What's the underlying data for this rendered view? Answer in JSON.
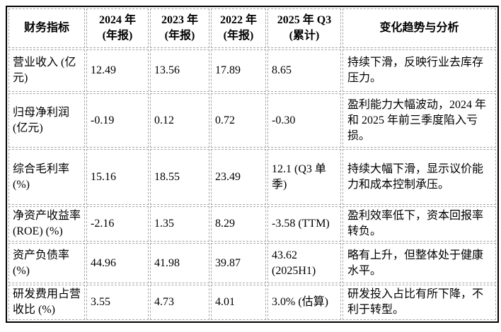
{
  "style": {
    "background_color": "#ffffff",
    "outer_border_color": "#000000",
    "grid_line_color": "#a8a8a8",
    "text_color": "#000000"
  },
  "table": {
    "headers": [
      {
        "line1": "财务指标",
        "line2": ""
      },
      {
        "line1": "2024 年",
        "line2": "(年报)"
      },
      {
        "line1": "2023 年",
        "line2": "(年报)"
      },
      {
        "line1": "2022 年",
        "line2": "(年报)"
      },
      {
        "line1": "2025 年 Q3",
        "line2": "(累计)"
      },
      {
        "line1": "变化趋势与分析",
        "line2": ""
      }
    ],
    "rows": [
      {
        "indicator": "营业收入 (亿元)",
        "y2024": "12.49",
        "y2023": "13.56",
        "y2022": "17.89",
        "q3_2025": "8.65",
        "analysis": "持续下滑，反映行业去库存压力。"
      },
      {
        "indicator": "归母净利润 (亿元)",
        "y2024": "-0.19",
        "y2023": "0.12",
        "y2022": "0.72",
        "q3_2025": "-0.30",
        "analysis": "盈利能力大幅波动，2024 年和 2025 年前三季度陷入亏损。"
      },
      {
        "indicator": "综合毛利率 (%)",
        "y2024": "15.16",
        "y2023": "18.55",
        "y2022": "23.49",
        "q3_2025": "12.1 (Q3 单季)",
        "analysis": "持续大幅下滑，显示议价能力和成本控制承压。"
      },
      {
        "indicator": "净资产收益率(ROE) (%)",
        "y2024": "-2.16",
        "y2023": "1.35",
        "y2022": "8.29",
        "q3_2025": "-3.58 (TTM)",
        "analysis": "盈利效率低下，资本回报率转负。"
      },
      {
        "indicator": "资产负债率 (%)",
        "y2024": "44.96",
        "y2023": "41.98",
        "y2022": "39.87",
        "q3_2025": "43.62 (2025H1)",
        "analysis": "略有上升，但整体处于健康水平。"
      },
      {
        "indicator": "研发费用占营收比 (%)",
        "y2024": "3.55",
        "y2023": "4.73",
        "y2022": "4.01",
        "q3_2025": "3.0% (估算)",
        "analysis": "研发投入占比有所下降，不利于转型。"
      }
    ]
  }
}
